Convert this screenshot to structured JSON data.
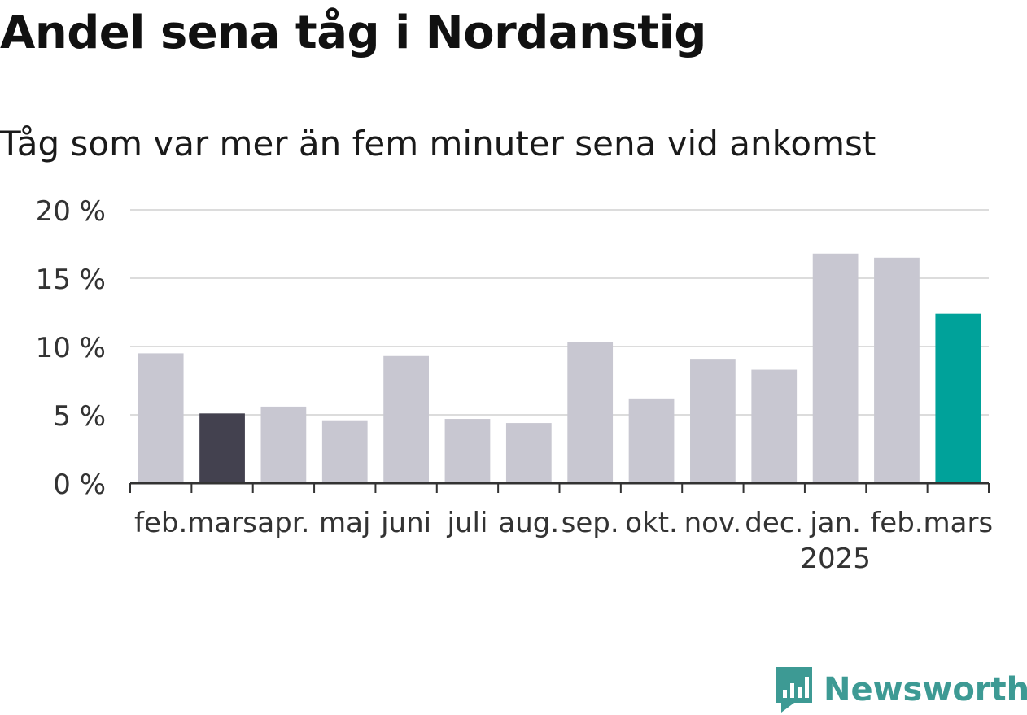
{
  "title": "Andel sena tåg i Nordanstig",
  "subtitle": "Tåg som var mer än fem minuter sena vid ankomst",
  "brand": {
    "name": "Newsworthy",
    "color": "#3d9a94",
    "icon": "newsworthy-logo-icon"
  },
  "chart_data": {
    "type": "bar",
    "categories": [
      "feb.",
      "mars",
      "apr.",
      "maj",
      "juni",
      "juli",
      "aug.",
      "sep.",
      "okt.",
      "nov.",
      "dec.",
      "jan.",
      "feb.",
      "mars"
    ],
    "category_sublabels": {
      "11": "2025"
    },
    "values": [
      9.5,
      5.1,
      5.6,
      4.6,
      9.3,
      4.7,
      4.4,
      10.3,
      6.2,
      9.1,
      8.3,
      16.8,
      16.5,
      12.4
    ],
    "ylim": [
      0,
      20
    ],
    "yticks": [
      0,
      5,
      10,
      15,
      20
    ],
    "ytick_labels": [
      "0 %",
      "5 %",
      "10 %",
      "15 %",
      "20 %"
    ],
    "grid": true,
    "colors": {
      "default": "#c8c7d1",
      "highlight_previous_year": "#43414f",
      "highlight_current": "#00a29a"
    },
    "highlight": {
      "1": "highlight_previous_year",
      "13": "highlight_current"
    }
  }
}
